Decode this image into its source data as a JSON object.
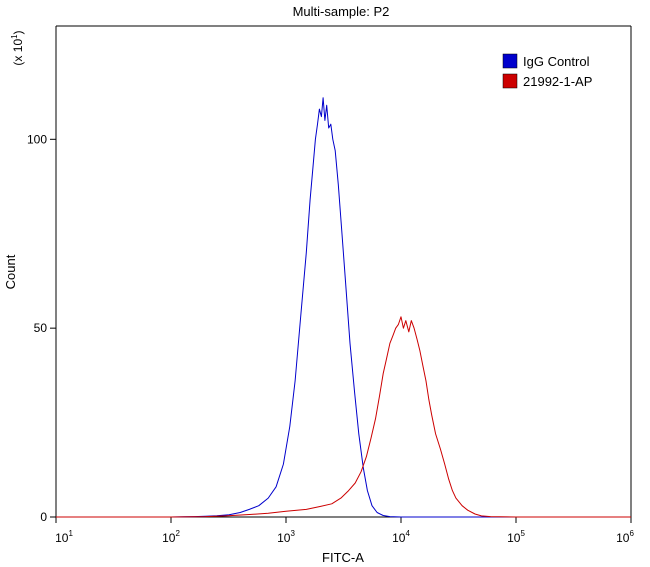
{
  "chart_data": {
    "type": "line",
    "title": "Multi-sample: P2",
    "xlabel": "FITC-A",
    "ylabel": "Count",
    "y_multiplier": "(x 10",
    "y_multiplier_exp": "1",
    "x_scale": "log",
    "xlim": [
      10,
      1000000
    ],
    "ylim": [
      0,
      130
    ],
    "x_ticks": [
      {
        "base": "10",
        "exp": "1",
        "value": 10
      },
      {
        "base": "10",
        "exp": "2",
        "value": 100
      },
      {
        "base": "10",
        "exp": "3",
        "value": 1000
      },
      {
        "base": "10",
        "exp": "4",
        "value": 10000
      },
      {
        "base": "10",
        "exp": "5",
        "value": 100000
      },
      {
        "base": "10",
        "exp": "6",
        "value": 1000000
      }
    ],
    "y_ticks": [
      {
        "label": "0",
        "value": 0
      },
      {
        "label": "50",
        "value": 50
      },
      {
        "label": "100",
        "value": 100
      }
    ],
    "legend_position": "top-right",
    "series": [
      {
        "name": "IgG Control",
        "color": "#0000cc",
        "x": [
          10,
          60,
          100,
          130,
          160,
          200,
          250,
          320,
          400,
          480,
          580,
          700,
          820,
          950,
          1080,
          1200,
          1350,
          1500,
          1620,
          1720,
          1800,
          1880,
          1950,
          2030,
          2100,
          2180,
          2260,
          2350,
          2450,
          2550,
          2680,
          2850,
          3050,
          3300,
          3600,
          3950,
          4300,
          4700,
          5100,
          5600,
          6200,
          7000,
          8000,
          10000,
          20000,
          100000,
          1000000
        ],
        "y": [
          0,
          0,
          0,
          0.05,
          0.1,
          0.2,
          0.35,
          0.6,
          1.2,
          2.0,
          3.0,
          5.0,
          8.0,
          14.0,
          24.0,
          36.0,
          54.0,
          70.0,
          84.0,
          93.0,
          100.0,
          104.0,
          108.0,
          106.0,
          111.0,
          105.0,
          109.0,
          103.0,
          104.0,
          100.0,
          97.0,
          88.0,
          76.0,
          62.0,
          46.0,
          33.0,
          22.0,
          13.0,
          7.0,
          3.0,
          1.2,
          0.4,
          0.1,
          0,
          0,
          0,
          0
        ]
      },
      {
        "name": "21992-1-AP",
        "color": "#cc0000",
        "x": [
          10,
          100,
          200,
          300,
          500,
          700,
          1000,
          1500,
          2000,
          2500,
          3000,
          3500,
          4000,
          4500,
          5000,
          5500,
          6000,
          6500,
          7000,
          7500,
          8000,
          8500,
          9000,
          9500,
          10000,
          10500,
          11000,
          11700,
          12300,
          13000,
          13800,
          14600,
          15500,
          16500,
          17500,
          18500,
          20000,
          22000,
          24000,
          26000,
          28000,
          30000,
          34000,
          38000,
          44000,
          50000,
          60000,
          100000,
          1000000
        ],
        "y": [
          0,
          0,
          0.1,
          0.3,
          0.7,
          1.0,
          1.5,
          2.0,
          2.8,
          3.5,
          5.0,
          7.0,
          9.0,
          12.0,
          16.0,
          21.0,
          26.0,
          32.0,
          38.0,
          42.0,
          46.0,
          48.0,
          50.0,
          51.0,
          53.0,
          50.0,
          52.0,
          49.0,
          52.0,
          50.0,
          47.0,
          44.0,
          40.0,
          36.0,
          31.0,
          27.0,
          22.0,
          18.0,
          14.0,
          10.0,
          7.0,
          5.0,
          3.0,
          1.8,
          0.8,
          0.3,
          0.1,
          0,
          0
        ]
      }
    ]
  }
}
